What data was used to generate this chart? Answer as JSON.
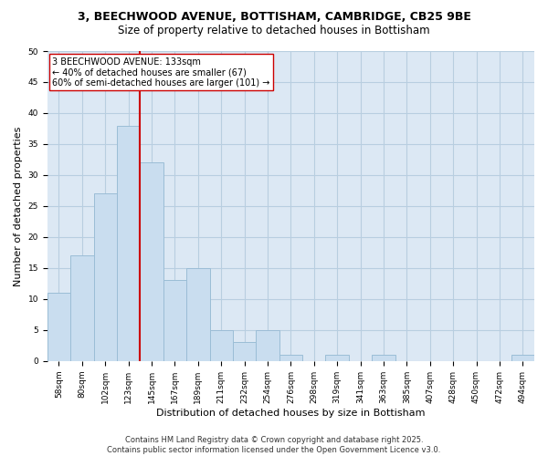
{
  "title_line1": "3, BEECHWOOD AVENUE, BOTTISHAM, CAMBRIDGE, CB25 9BE",
  "title_line2": "Size of property relative to detached houses in Bottisham",
  "xlabel": "Distribution of detached houses by size in Bottisham",
  "ylabel": "Number of detached properties",
  "categories": [
    "58sqm",
    "80sqm",
    "102sqm",
    "123sqm",
    "145sqm",
    "167sqm",
    "189sqm",
    "211sqm",
    "232sqm",
    "254sqm",
    "276sqm",
    "298sqm",
    "319sqm",
    "341sqm",
    "363sqm",
    "385sqm",
    "407sqm",
    "428sqm",
    "450sqm",
    "472sqm",
    "494sqm"
  ],
  "values": [
    11,
    17,
    27,
    38,
    32,
    13,
    15,
    5,
    3,
    5,
    1,
    0,
    1,
    0,
    1,
    0,
    0,
    0,
    0,
    0,
    1
  ],
  "bar_color": "#c9ddef",
  "bar_edge_color": "#9bbdd6",
  "grid_color": "#b8cee0",
  "background_color": "#dce8f4",
  "property_line_index": 3,
  "property_line_color": "#cc0000",
  "annotation_text": "3 BEECHWOOD AVENUE: 133sqm\n← 40% of detached houses are smaller (67)\n60% of semi-detached houses are larger (101) →",
  "annotation_box_color": "#ffffff",
  "annotation_box_edge": "#cc0000",
  "ylim": [
    0,
    50
  ],
  "yticks": [
    0,
    5,
    10,
    15,
    20,
    25,
    30,
    35,
    40,
    45,
    50
  ],
  "footer_text": "Contains HM Land Registry data © Crown copyright and database right 2025.\nContains public sector information licensed under the Open Government Licence v3.0.",
  "title_fontsize": 9,
  "subtitle_fontsize": 8.5,
  "axis_label_fontsize": 8,
  "tick_fontsize": 6.5,
  "annotation_fontsize": 7,
  "footer_fontsize": 6
}
